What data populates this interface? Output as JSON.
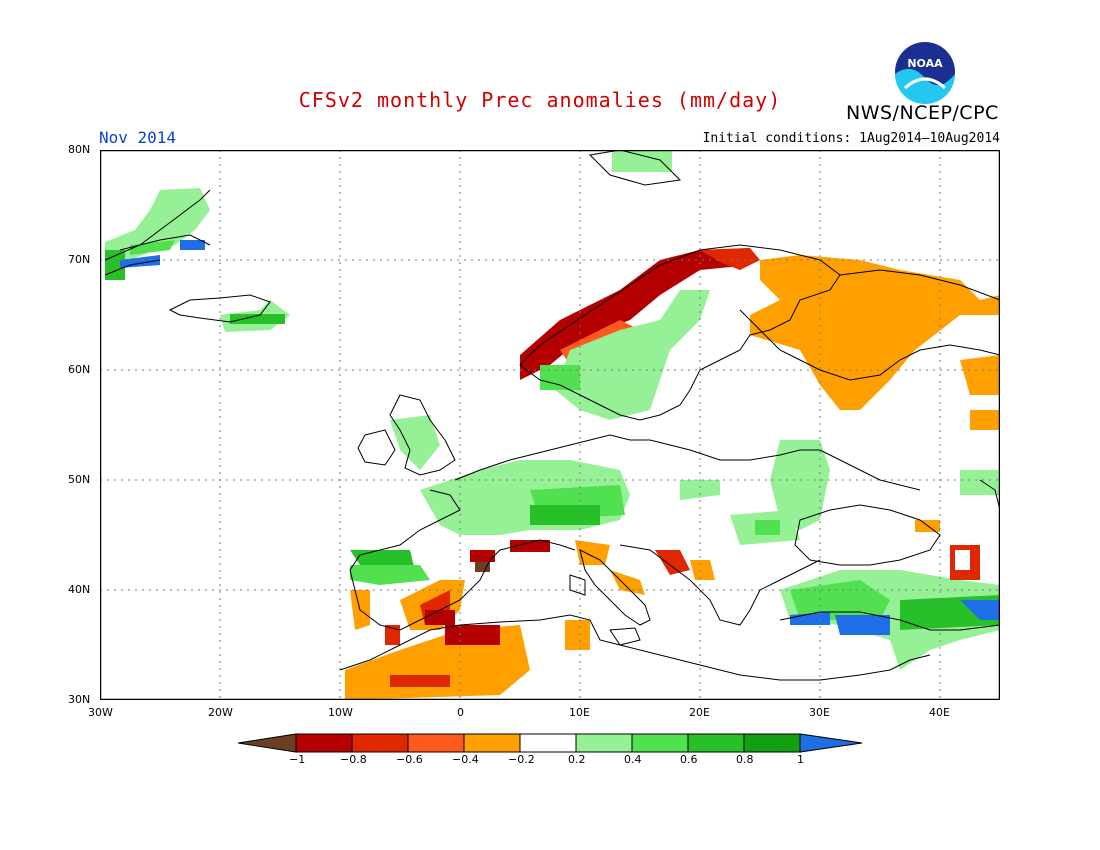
{
  "header": {
    "title": "CFSv2 monthly Prec anomalies (mm/day)",
    "agency": "NWS/NCEP/CPC",
    "month": "Nov 2014",
    "initial_conditions": "Initial conditions: 1Aug2014–10Aug2014",
    "logo_text": "NOAA"
  },
  "map": {
    "lat_labels": [
      "80N",
      "70N",
      "60N",
      "50N",
      "40N",
      "30N"
    ],
    "lon_labels": [
      "30W",
      "20W",
      "10W",
      "0",
      "10E",
      "20E",
      "30E",
      "40E"
    ]
  },
  "colorbar": {
    "labels": [
      "−1",
      "−0.8",
      "−0.6",
      "−0.4",
      "−0.2",
      "0.2",
      "0.4",
      "0.6",
      "0.8",
      "1"
    ],
    "colors": [
      "#6b3f24",
      "#b40000",
      "#e02800",
      "#ff5a1e",
      "#ffa000",
      "#ffffff",
      "#96f096",
      "#50e050",
      "#28c028",
      "#12a012",
      "#1e6ee6"
    ]
  }
}
